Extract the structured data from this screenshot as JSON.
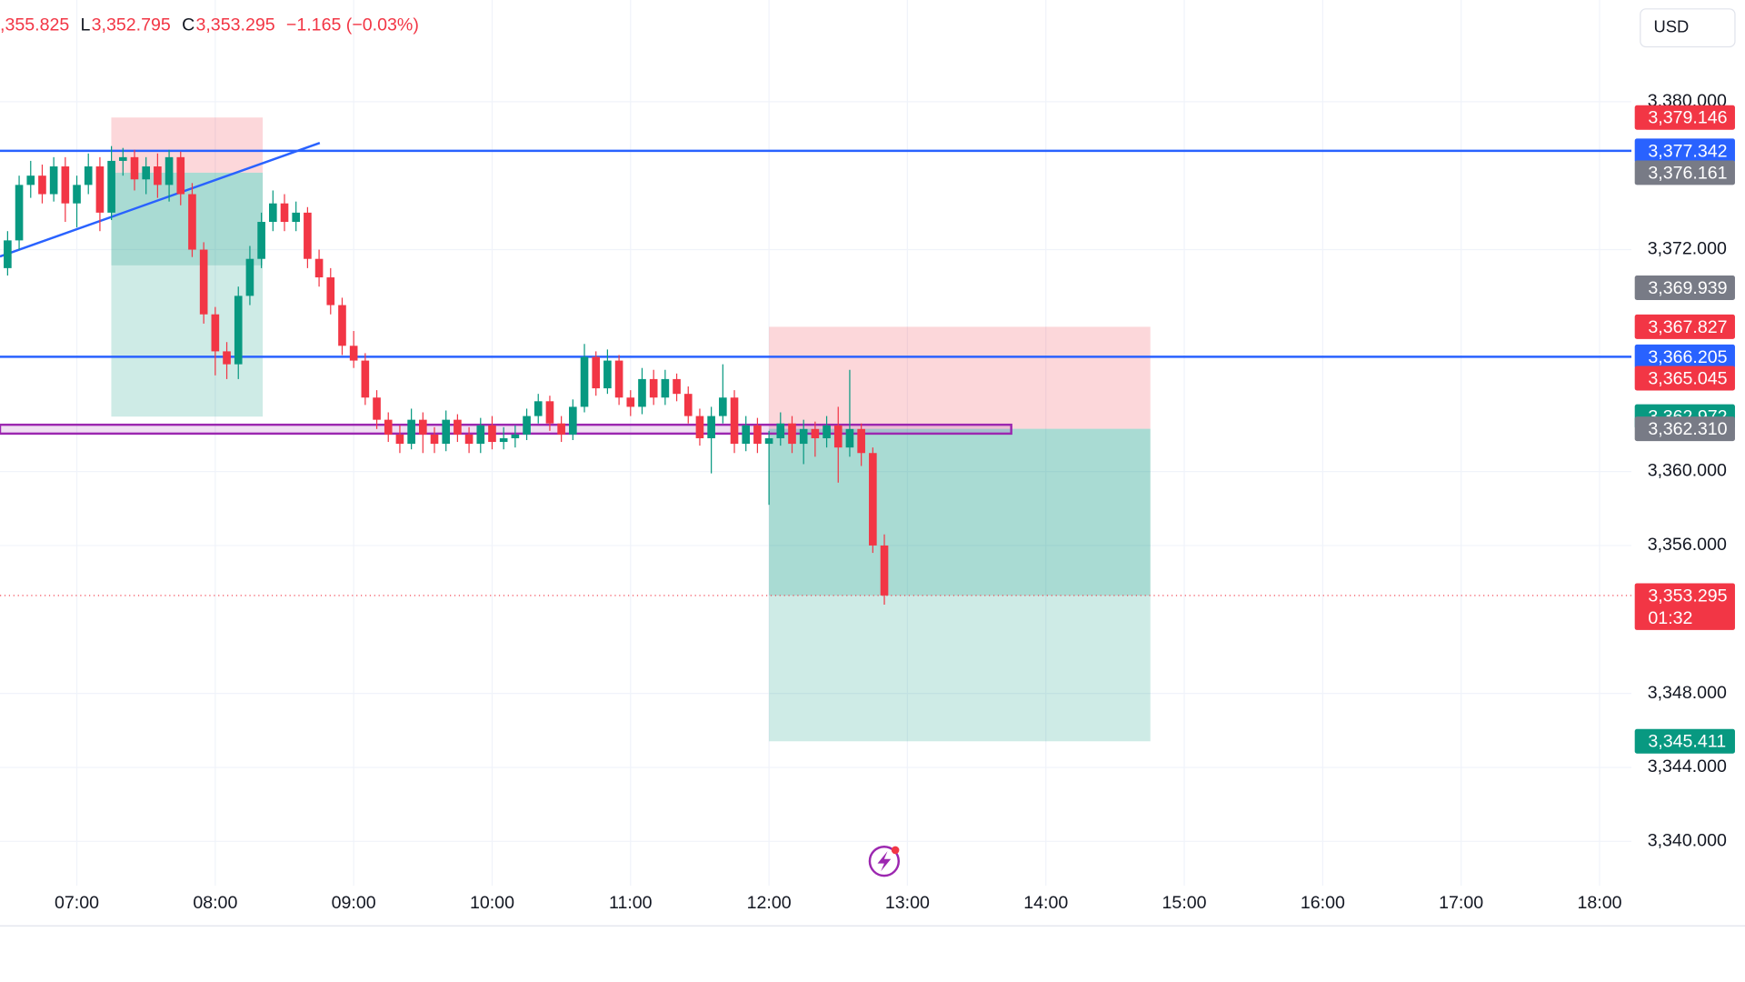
{
  "chart_data": {
    "type": "candlestick",
    "ohlc_header": [
      {
        "value": ",355.825"
      },
      {
        "key": "L",
        "value": "3,352.795"
      },
      {
        "key": "C",
        "value": "3,353.295"
      },
      {
        "value": "−1.165 (−0.03%)"
      }
    ],
    "currency": "USD",
    "up_color": "#089981",
    "down_color": "#f23645",
    "xlim": [
      6.445,
      18.23
    ],
    "ylim": [
      3337.6,
      3385.5
    ],
    "xticks": [
      {
        "value": 7,
        "label": "07:00"
      },
      {
        "value": 8,
        "label": "08:00"
      },
      {
        "value": 9,
        "label": "09:00"
      },
      {
        "value": 10,
        "label": "10:00"
      },
      {
        "value": 11,
        "label": "11:00"
      },
      {
        "value": 12,
        "label": "12:00"
      },
      {
        "value": 13,
        "label": "13:00"
      },
      {
        "value": 14,
        "label": "14:00"
      },
      {
        "value": 15,
        "label": "15:00"
      },
      {
        "value": 16,
        "label": "16:00"
      },
      {
        "value": 17,
        "label": "17:00"
      },
      {
        "value": 18,
        "label": "18:00"
      }
    ],
    "yticks": [
      {
        "value": 3380,
        "label": "3,380.000"
      },
      {
        "value": 3372,
        "label": "3,372.000"
      },
      {
        "value": 3360,
        "label": "3,360.000"
      },
      {
        "value": 3356,
        "label": "3,356.000"
      },
      {
        "value": 3348,
        "label": "3,348.000"
      },
      {
        "value": 3344,
        "label": "3,344.000"
      },
      {
        "value": 3340,
        "label": "3,340.000"
      }
    ],
    "grid": true,
    "x": [
      6.5,
      6.5833,
      6.6667,
      6.75,
      6.8333,
      6.9167,
      7.0,
      7.0833,
      7.1667,
      7.25,
      7.3333,
      7.4167,
      7.5,
      7.5833,
      7.6667,
      7.75,
      7.8333,
      7.9167,
      8.0,
      8.0833,
      8.1667,
      8.25,
      8.3333,
      8.4167,
      8.5,
      8.5833,
      8.6667,
      8.75,
      8.8333,
      8.9167,
      9.0,
      9.0833,
      9.1667,
      9.25,
      9.3333,
      9.4167,
      9.5,
      9.5833,
      9.6667,
      9.75,
      9.8333,
      9.9167,
      10.0,
      10.0833,
      10.1667,
      10.25,
      10.3333,
      10.4167,
      10.5,
      10.5833,
      10.6667,
      10.75,
      10.8333,
      10.9167,
      11.0,
      11.0833,
      11.1667,
      11.25,
      11.3333,
      11.4167,
      11.5,
      11.5833,
      11.6667,
      11.75,
      11.8333,
      11.9167,
      12.0,
      12.0833,
      12.1667,
      12.25,
      12.3333,
      12.4167,
      12.5,
      12.5833,
      12.6667,
      12.75,
      12.8333
    ],
    "open": [
      3371.0,
      3372.5,
      3375.5,
      3376.0,
      3375.0,
      3376.5,
      3374.5,
      3375.5,
      3376.5,
      3374.0,
      3376.8,
      3377.0,
      3375.8,
      3376.5,
      3375.5,
      3377.0,
      3375.0,
      3372.0,
      3368.5,
      3366.5,
      3365.8,
      3369.5,
      3371.5,
      3373.5,
      3374.5,
      3373.5,
      3374.0,
      3371.5,
      3370.5,
      3369.0,
      3366.8,
      3366.0,
      3364.0,
      3362.8,
      3362.0,
      3361.5,
      3362.8,
      3362.0,
      3361.5,
      3362.8,
      3362.0,
      3361.5,
      3362.5,
      3361.6,
      3361.8,
      3362.0,
      3363.0,
      3363.8,
      3362.6,
      3362.0,
      3363.5,
      3366.2,
      3364.5,
      3366.0,
      3364.0,
      3363.5,
      3365.0,
      3364.0,
      3365.0,
      3364.2,
      3363.0,
      3361.8,
      3363.0,
      3364.0,
      3361.5,
      3362.5,
      3361.5,
      3361.8,
      3362.6,
      3361.5,
      3362.3,
      3361.8,
      3362.5,
      3361.3,
      3362.3,
      3361.0,
      3356.0
    ],
    "high": [
      3373.0,
      3376.0,
      3376.8,
      3376.6,
      3377.0,
      3377.0,
      3376.0,
      3377.2,
      3377.0,
      3377.6,
      3377.5,
      3377.4,
      3377.0,
      3377.2,
      3377.4,
      3377.3,
      3375.6,
      3372.4,
      3368.9,
      3367.0,
      3370.0,
      3372.2,
      3374.0,
      3375.2,
      3375.0,
      3374.6,
      3374.3,
      3372.0,
      3371.0,
      3369.4,
      3367.6,
      3366.4,
      3364.4,
      3363.2,
      3362.5,
      3363.4,
      3363.2,
      3362.4,
      3363.3,
      3363.1,
      3362.4,
      3362.9,
      3363.0,
      3362.4,
      3362.5,
      3363.4,
      3364.2,
      3364.1,
      3363.0,
      3363.9,
      3366.9,
      3366.5,
      3366.6,
      3366.3,
      3364.4,
      3365.6,
      3365.5,
      3365.5,
      3365.3,
      3364.6,
      3363.4,
      3363.5,
      3365.8,
      3364.4,
      3363.0,
      3362.9,
      3362.2,
      3363.2,
      3363.0,
      3362.8,
      3362.7,
      3363.0,
      3363.5,
      3365.5,
      3362.6,
      3361.3,
      3356.6
    ],
    "low": [
      3370.6,
      3372.0,
      3374.8,
      3374.5,
      3374.6,
      3373.5,
      3373.2,
      3375.0,
      3373.0,
      3373.6,
      3376.0,
      3375.2,
      3375.0,
      3374.8,
      3374.6,
      3374.4,
      3371.6,
      3368.0,
      3365.2,
      3365.0,
      3365.0,
      3369.0,
      3371.0,
      3373.0,
      3373.0,
      3373.0,
      3371.0,
      3370.0,
      3368.5,
      3366.3,
      3365.6,
      3363.6,
      3362.3,
      3361.6,
      3361.0,
      3361.2,
      3361.0,
      3361.0,
      3361.1,
      3361.6,
      3361.0,
      3361.0,
      3361.2,
      3361.2,
      3361.3,
      3361.7,
      3362.6,
      3362.2,
      3361.6,
      3361.7,
      3363.2,
      3364.1,
      3364.2,
      3363.6,
      3363.0,
      3363.1,
      3363.6,
      3363.6,
      3363.8,
      3362.6,
      3361.4,
      3359.9,
      3362.6,
      3361.0,
      3361.1,
      3361.0,
      3358.2,
      3361.4,
      3361.0,
      3360.4,
      3360.8,
      3361.3,
      3359.4,
      3360.8,
      3360.3,
      3355.6,
      3352.8
    ],
    "close": [
      3372.5,
      3375.5,
      3376.0,
      3375.0,
      3376.5,
      3374.5,
      3375.5,
      3376.5,
      3374.0,
      3376.8,
      3377.0,
      3375.8,
      3376.5,
      3375.5,
      3377.0,
      3375.0,
      3372.0,
      3368.5,
      3366.5,
      3365.8,
      3369.5,
      3371.5,
      3373.5,
      3374.5,
      3373.5,
      3374.0,
      3371.5,
      3370.5,
      3369.0,
      3366.8,
      3366.0,
      3364.0,
      3362.8,
      3362.0,
      3361.5,
      3362.8,
      3362.0,
      3361.5,
      3362.8,
      3362.0,
      3361.5,
      3362.5,
      3361.6,
      3361.8,
      3362.0,
      3363.0,
      3363.8,
      3362.6,
      3362.0,
      3363.5,
      3366.2,
      3364.5,
      3366.0,
      3364.0,
      3363.5,
      3365.0,
      3364.0,
      3365.0,
      3364.2,
      3363.0,
      3361.8,
      3363.0,
      3364.0,
      3361.5,
      3362.5,
      3361.5,
      3361.8,
      3362.6,
      3361.5,
      3362.3,
      3361.8,
      3362.5,
      3361.3,
      3362.3,
      3361.0,
      3356.0,
      3353.3
    ],
    "horizontal_lines": [
      {
        "price": 3377.342,
        "color": "#2962ff"
      },
      {
        "price": 3366.205,
        "color": "#2962ff"
      }
    ],
    "zone": {
      "start": 6.445,
      "end": 13.75,
      "top": 3362.53,
      "bottom": 3362.05,
      "color": "#9c27b0"
    },
    "trendline": {
      "x": [
        6.445,
        8.755
      ],
      "y": [
        3371.63,
        3377.77
      ],
      "color": "#2962ff"
    },
    "positions": [
      {
        "start": 7.249,
        "end": 8.343,
        "stop": 3379.146,
        "entry": 3376.161,
        "fill_to": 3371.15,
        "target": 3362.972
      },
      {
        "start": 12.0,
        "end": 14.755,
        "stop": 3367.827,
        "entry": 3362.31,
        "fill_to": 3353.295,
        "target": 3345.411
      }
    ],
    "price_labels": [
      {
        "value": 3379.146,
        "label": "3,379.146",
        "color": "#f23645"
      },
      {
        "value": 3377.342,
        "label": "3,377.342",
        "color": "#2962ff"
      },
      {
        "value": 3376.161,
        "label": "3,376.161",
        "color": "#787b86"
      },
      {
        "value": 3369.939,
        "label": "3,369.939",
        "color": "#787b86"
      },
      {
        "value": 3367.827,
        "label": "3,367.827",
        "color": "#f23645"
      },
      {
        "value": 3366.205,
        "label": "3,366.205",
        "color": "#2962ff"
      },
      {
        "value": 3365.045,
        "label": "3,365.045",
        "color": "#f23645"
      },
      {
        "value": 3362.972,
        "label": "3,362.972",
        "color": "#089981"
      },
      {
        "value": 3362.31,
        "label": "3,362.310",
        "color": "#787b86"
      },
      {
        "value": 3353.295,
        "label": "3,353.295",
        "color": "#f23645",
        "countdown": "01:32"
      },
      {
        "value": 3345.411,
        "label": "3,345.411",
        "color": "#089981"
      }
    ]
  }
}
